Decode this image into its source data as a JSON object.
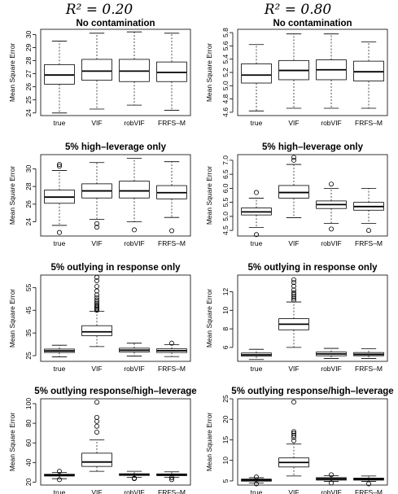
{
  "column_titles": [
    "R² = 0.20",
    "R² = 0.80"
  ],
  "chart_data": [
    {
      "type": "boxplot",
      "column": 0,
      "row": 0,
      "title": "No contamination",
      "ylabel": "Mean Square Error",
      "ylim": [
        23.8,
        30.4
      ],
      "yticks": [
        24,
        25,
        26,
        27,
        28,
        29,
        30
      ],
      "categories": [
        "true",
        "VIF",
        "robVIF",
        "FRFS–M"
      ],
      "boxes": [
        {
          "low": 24.0,
          "q1": 26.2,
          "median": 26.9,
          "q3": 27.7,
          "high": 29.5,
          "outliers": []
        },
        {
          "low": 24.3,
          "q1": 26.5,
          "median": 27.2,
          "q3": 28.1,
          "high": 30.1,
          "outliers": []
        },
        {
          "low": 24.6,
          "q1": 26.4,
          "median": 27.2,
          "q3": 28.1,
          "high": 30.2,
          "outliers": []
        },
        {
          "low": 24.2,
          "q1": 26.4,
          "median": 27.1,
          "q3": 27.9,
          "high": 30.1,
          "outliers": []
        }
      ]
    },
    {
      "type": "boxplot",
      "column": 1,
      "row": 0,
      "title": "No contamination",
      "ylabel": "Mean Square Error",
      "ylim": [
        4.55,
        5.85
      ],
      "yticks": [
        4.6,
        4.8,
        5.0,
        5.2,
        5.4,
        5.6,
        5.8
      ],
      "categories": [
        "true",
        "VIF",
        "robVIF",
        "FRFS–M"
      ],
      "boxes": [
        {
          "low": 4.62,
          "q1": 5.04,
          "median": 5.16,
          "q3": 5.33,
          "high": 5.62,
          "outliers": []
        },
        {
          "low": 4.66,
          "q1": 5.09,
          "median": 5.23,
          "q3": 5.38,
          "high": 5.78,
          "outliers": []
        },
        {
          "low": 4.66,
          "q1": 5.09,
          "median": 5.24,
          "q3": 5.39,
          "high": 5.78,
          "outliers": []
        },
        {
          "low": 4.66,
          "q1": 5.07,
          "median": 5.21,
          "q3": 5.37,
          "high": 5.66,
          "outliers": []
        }
      ]
    },
    {
      "type": "boxplot",
      "column": 0,
      "row": 1,
      "title": "5% high–leverage only",
      "ylabel": "Mean Square Error",
      "ylim": [
        22.4,
        31.6
      ],
      "yticks": [
        24,
        26,
        28,
        30
      ],
      "categories": [
        "true",
        "VIF",
        "robVIF",
        "FRFS–M"
      ],
      "boxes": [
        {
          "low": 23.6,
          "q1": 26.1,
          "median": 26.8,
          "q3": 27.6,
          "high": 29.8,
          "outliers": [
            30.3,
            30.5,
            22.8
          ]
        },
        {
          "low": 24.3,
          "q1": 26.7,
          "median": 27.5,
          "q3": 28.3,
          "high": 30.7,
          "outliers": [
            23.8,
            23.4
          ]
        },
        {
          "low": 24.0,
          "q1": 26.7,
          "median": 27.5,
          "q3": 28.6,
          "high": 31.2,
          "outliers": [
            23.1
          ]
        },
        {
          "low": 24.5,
          "q1": 26.6,
          "median": 27.3,
          "q3": 28.1,
          "high": 30.8,
          "outliers": [
            23.0
          ]
        }
      ]
    },
    {
      "type": "boxplot",
      "column": 1,
      "row": 1,
      "title": "5% high–leverage only",
      "ylabel": "Mean Square Error",
      "ylim": [
        4.3,
        7.2
      ],
      "yticks": [
        4.5,
        5.0,
        5.5,
        6.0,
        6.5,
        7.0
      ],
      "categories": [
        "true",
        "VIF",
        "robVIF",
        "FRFS–M"
      ],
      "boxes": [
        {
          "low": 4.6,
          "q1": 5.05,
          "median": 5.16,
          "q3": 5.3,
          "high": 5.65,
          "outliers": [
            5.85,
            4.35
          ]
        },
        {
          "low": 4.95,
          "q1": 5.65,
          "median": 5.85,
          "q3": 6.1,
          "high": 6.85,
          "outliers": [
            7.0,
            7.1
          ]
        },
        {
          "low": 4.75,
          "q1": 5.28,
          "median": 5.42,
          "q3": 5.55,
          "high": 6.0,
          "outliers": [
            6.15,
            4.55
          ]
        },
        {
          "low": 4.75,
          "q1": 5.22,
          "median": 5.35,
          "q3": 5.5,
          "high": 6.0,
          "outliers": [
            4.5
          ]
        }
      ]
    },
    {
      "type": "boxplot",
      "column": 0,
      "row": 2,
      "title": "5% outlying in response only",
      "ylabel": "Mean Square Error",
      "ylim": [
        22.5,
        60.5
      ],
      "yticks": [
        25,
        35,
        45,
        55
      ],
      "categories": [
        "true",
        "VIF",
        "robVIF",
        "FRFS–M"
      ],
      "boxes": [
        {
          "low": 24.5,
          "q1": 26.4,
          "median": 27.1,
          "q3": 27.9,
          "high": 29.6,
          "outliers": []
        },
        {
          "low": 29.0,
          "q1": 33.8,
          "median": 35.5,
          "q3": 38.2,
          "high": 44.5,
          "outliers": [
            45.0,
            45.5,
            46.0,
            46.6,
            47.2,
            47.9,
            48.6,
            49.5,
            50.6,
            51.8,
            53.5,
            55.5,
            58.0,
            59.5
          ]
        },
        {
          "low": 24.8,
          "q1": 26.6,
          "median": 27.4,
          "q3": 28.3,
          "high": 30.5,
          "outliers": []
        },
        {
          "low": 24.6,
          "q1": 26.4,
          "median": 27.2,
          "q3": 28.0,
          "high": 29.9,
          "outliers": [
            30.5
          ]
        }
      ]
    },
    {
      "type": "boxplot",
      "column": 1,
      "row": 2,
      "title": "5% outlying in response only",
      "ylabel": "Mean Square Error",
      "ylim": [
        4.5,
        13.8
      ],
      "yticks": [
        6,
        8,
        10,
        12
      ],
      "categories": [
        "true",
        "VIF",
        "robVIF",
        "FRFS–M"
      ],
      "boxes": [
        {
          "low": 4.7,
          "q1": 5.05,
          "median": 5.2,
          "q3": 5.4,
          "high": 5.8,
          "outliers": []
        },
        {
          "low": 6.0,
          "q1": 7.9,
          "median": 8.5,
          "q3": 9.1,
          "high": 10.9,
          "outliers": [
            11.1,
            11.3,
            11.5,
            11.7,
            11.9,
            12.2,
            12.6,
            13.0,
            13.3
          ]
        },
        {
          "low": 4.8,
          "q1": 5.1,
          "median": 5.3,
          "q3": 5.5,
          "high": 5.9,
          "outliers": []
        },
        {
          "low": 4.8,
          "q1": 5.1,
          "median": 5.25,
          "q3": 5.45,
          "high": 5.85,
          "outliers": []
        }
      ]
    },
    {
      "type": "boxplot",
      "column": 0,
      "row": 3,
      "title": "5% outlying response/high–leverage",
      "ylabel": "Mean Square Error",
      "ylim": [
        17,
        105
      ],
      "yticks": [
        20,
        40,
        60,
        80,
        100
      ],
      "categories": [
        "true",
        "VIF",
        "robVIF",
        "FRFS–M"
      ],
      "boxes": [
        {
          "low": 23.5,
          "q1": 26.2,
          "median": 27.0,
          "q3": 28.0,
          "high": 30.0,
          "outliers": [
            31.0,
            22.5
          ]
        },
        {
          "low": 31.0,
          "q1": 36.0,
          "median": 40.5,
          "q3": 49.5,
          "high": 63.0,
          "outliers": [
            71.0,
            77.0,
            82.0,
            86.0,
            101.5
          ]
        },
        {
          "low": 25.0,
          "q1": 26.8,
          "median": 27.5,
          "q3": 28.5,
          "high": 31.0,
          "outliers": [
            24.0,
            23.5
          ]
        },
        {
          "low": 25.0,
          "q1": 26.6,
          "median": 27.4,
          "q3": 28.4,
          "high": 30.5,
          "outliers": [
            24.5,
            22.5
          ]
        }
      ]
    },
    {
      "type": "boxplot",
      "column": 1,
      "row": 3,
      "title": "5% outlying response/high–leverage",
      "ylabel": "Mean Square Error",
      "ylim": [
        4.0,
        25.0
      ],
      "yticks": [
        5,
        10,
        15,
        20,
        25
      ],
      "categories": [
        "true",
        "VIF",
        "robVIF",
        "FRFS–M"
      ],
      "boxes": [
        {
          "low": 4.5,
          "q1": 4.95,
          "median": 5.2,
          "q3": 5.45,
          "high": 5.8,
          "outliers": [
            4.3,
            5.95
          ]
        },
        {
          "low": 6.2,
          "q1": 8.4,
          "median": 9.5,
          "q3": 10.6,
          "high": 14.0,
          "outliers": [
            14.8,
            15.6,
            16.1,
            16.6,
            17.0,
            24.2
          ]
        },
        {
          "low": 4.9,
          "q1": 5.2,
          "median": 5.5,
          "q3": 5.8,
          "high": 6.3,
          "outliers": [
            4.5,
            6.5
          ]
        },
        {
          "low": 4.9,
          "q1": 5.2,
          "median": 5.45,
          "q3": 5.7,
          "high": 6.2,
          "outliers": [
            4.3
          ]
        }
      ]
    }
  ]
}
